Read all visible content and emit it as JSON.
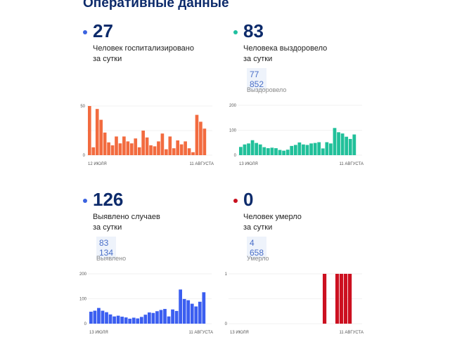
{
  "header": {
    "title": "Оперативные данные"
  },
  "cards": [
    {
      "value": "27",
      "label1": "Человек госпитализировано",
      "label2": "за сутки",
      "color": "#3b63e0"
    },
    {
      "value": "83",
      "label1": "Человека выздоровело",
      "label2": "за сутки",
      "total": "77 852",
      "total_caption": "Выздоровело",
      "color": "#20c0a0"
    },
    {
      "value": "126",
      "label1": "Выявлено случаев",
      "label2": "за сутки",
      "total": "83 134",
      "total_caption": "Выявлено",
      "color": "#3b63e0"
    },
    {
      "value": "0",
      "label1": "Человек умерло",
      "label2": "за сутки",
      "total": "4 658",
      "total_caption": "Умерло",
      "color": "#c8101e"
    }
  ],
  "chart_data": [
    {
      "type": "bar",
      "color": "#f26b3f",
      "ylim": [
        0,
        50
      ],
      "yticks": [
        0,
        50
      ],
      "x_start": "12 ИЮЛЯ",
      "x_end": "11 АВГУСТА",
      "grid": true,
      "values": [
        50,
        8,
        47,
        36,
        23,
        13,
        10,
        19,
        12,
        19,
        14,
        12,
        17,
        8,
        25,
        18,
        10,
        9,
        14,
        22,
        6,
        19,
        7,
        15,
        11,
        14,
        7,
        3,
        41,
        34,
        27
      ]
    },
    {
      "type": "bar",
      "color": "#21c09a",
      "ylim": [
        0,
        200
      ],
      "yticks": [
        0,
        100,
        200
      ],
      "x_start": "13 ИЮЛЯ",
      "x_end": "11 АВГУСТА",
      "grid": true,
      "values": [
        33,
        43,
        47,
        60,
        49,
        43,
        32,
        28,
        30,
        28,
        21,
        18,
        22,
        37,
        41,
        51,
        43,
        41,
        47,
        49,
        52,
        27,
        52,
        47,
        109,
        92,
        87,
        74,
        65,
        83
      ]
    },
    {
      "type": "bar",
      "color": "#3b5ef0",
      "ylim": [
        0,
        200
      ],
      "yticks": [
        0,
        100,
        200
      ],
      "x_start": "13 ИЮЛЯ",
      "x_end": "11 АВГУСТА",
      "grid": true,
      "values": [
        48,
        52,
        63,
        52,
        46,
        37,
        29,
        32,
        28,
        25,
        20,
        24,
        21,
        27,
        36,
        45,
        43,
        50,
        55,
        59,
        29,
        57,
        51,
        137,
        99,
        94,
        80,
        69,
        88,
        126
      ]
    },
    {
      "type": "bar",
      "color": "#cc1020",
      "ylim": [
        0,
        1
      ],
      "yticks": [
        0,
        1
      ],
      "x_start": "13 ИЮЛЯ",
      "x_end": "11 АВГУСТА",
      "grid": true,
      "values": [
        0,
        0,
        0,
        0,
        0,
        0,
        0,
        0,
        0,
        0,
        0,
        0,
        0,
        0,
        0,
        0,
        0,
        0,
        0,
        0,
        0,
        0,
        1,
        0,
        0,
        1,
        1,
        1,
        1,
        0
      ]
    }
  ]
}
